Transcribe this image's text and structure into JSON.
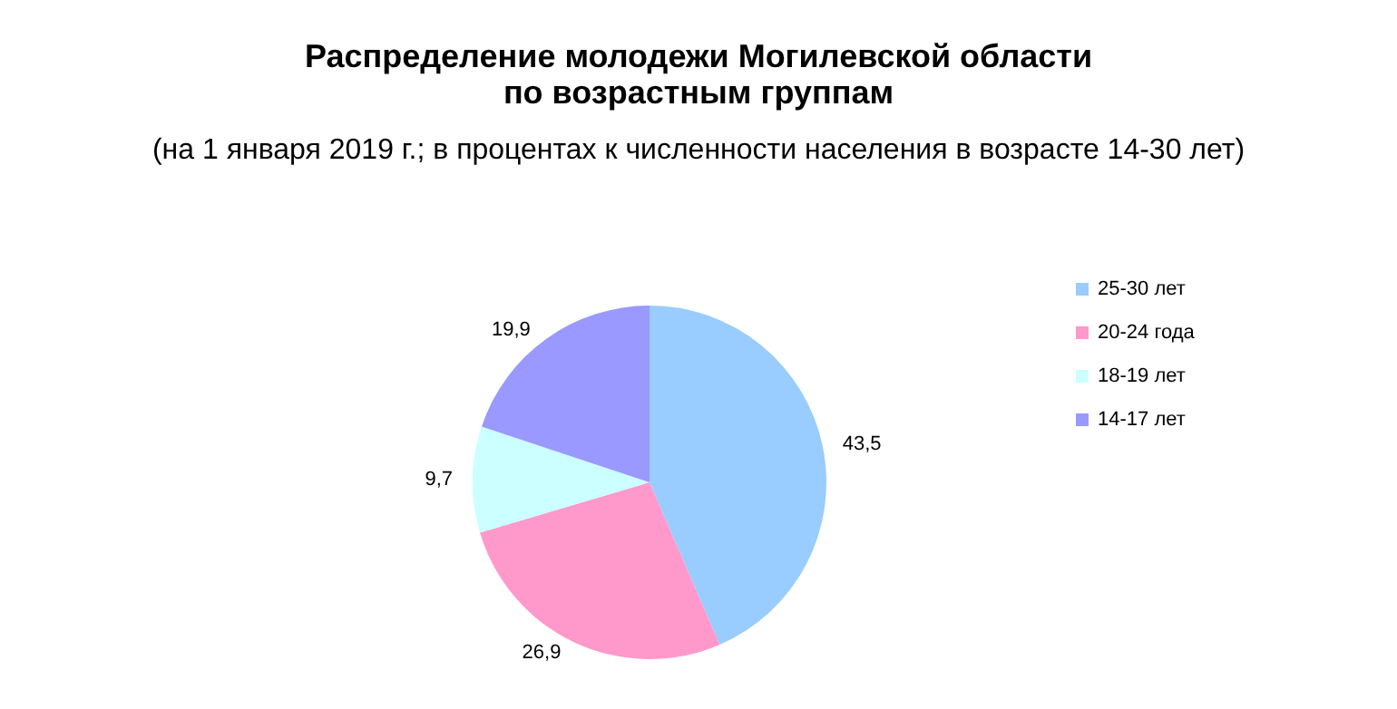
{
  "chart_data": {
    "type": "pie",
    "title": "Распределение молодежи Могилевской области\nпо возрастным группам",
    "subtitle": "(на 1 января 2019 г.; в процентах к численности населения в возрасте 14-30 лет)",
    "categories": [
      "25-30 лет",
      "20-24 года",
      "18-19 лет",
      "14-17 лет"
    ],
    "values": [
      43.5,
      26.9,
      9.7,
      19.9
    ],
    "value_labels": [
      "43,5",
      "26,9",
      "9,7",
      "19,9"
    ],
    "colors": [
      "#99ccff",
      "#ff99cc",
      "#ccffff",
      "#9999ff"
    ],
    "legend": "right"
  }
}
